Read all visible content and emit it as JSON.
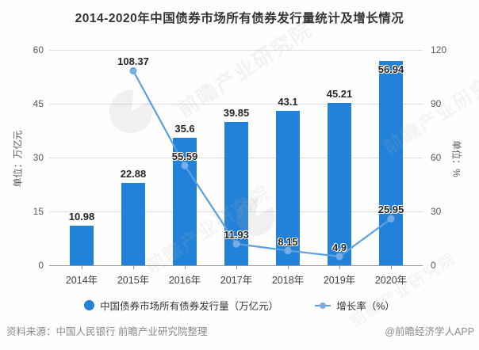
{
  "title": "2014-2020年中国债券市场所有债券发行量统计及增长情况",
  "chart_data": {
    "type": "bar+line",
    "title": "2014-2020年中国债券市场所有债券发行量统计及增长情况",
    "categories": [
      "2014年",
      "2015年",
      "2016年",
      "2017年",
      "2018年",
      "2019年",
      "2020年"
    ],
    "series": [
      {
        "name": "中国债券市场所有债券发行量（万亿元）",
        "type": "bar",
        "axis": "left",
        "values": [
          10.98,
          22.88,
          35.6,
          39.85,
          43.1,
          45.21,
          56.94
        ]
      },
      {
        "name": "增长率（%）",
        "type": "line",
        "axis": "right",
        "values": [
          null,
          108.37,
          55.59,
          11.93,
          8.15,
          4.9,
          25.95
        ]
      }
    ],
    "left_axis": {
      "label": "单位：万亿元",
      "range": [
        0,
        60
      ],
      "ticks": [
        0,
        15,
        30,
        45,
        60
      ]
    },
    "right_axis": {
      "label": "单位：%",
      "range": [
        0,
        120
      ],
      "ticks": [
        0,
        30,
        60,
        90,
        120
      ]
    },
    "grid": true,
    "legend_position": "bottom"
  },
  "legend": {
    "bar_label": "中国债券市场所有债券发行量（万亿元）",
    "line_label": "增长率（%）"
  },
  "footer": {
    "source": "资料来源：中国人民银行 前瞻产业研究院整理",
    "credit": "@前瞻经济学人APP"
  },
  "watermark": {
    "text": "前瞻产业研究院"
  },
  "colors": {
    "bar": "#2281D8",
    "line": "#5E9FDE",
    "point": "#78ACE4",
    "grid": "#dcdcdc",
    "axis": "#9a9a9a",
    "label": "#262626"
  }
}
